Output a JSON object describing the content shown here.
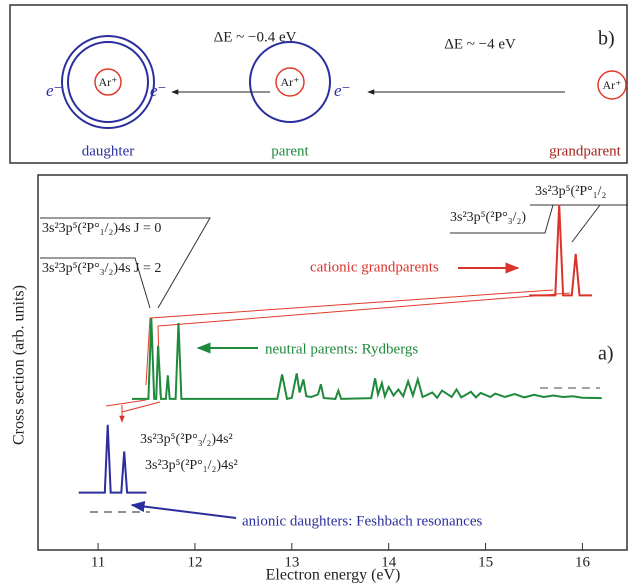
{
  "diagram": {
    "panel_label": "b)",
    "energies": [
      "ΔE ~ −0.4 eV",
      "ΔE ~ −4 eV"
    ],
    "states": [
      {
        "name": "daughter",
        "ion": "Ar⁺",
        "electrons": [
          "e⁻",
          "e⁻"
        ]
      },
      {
        "name": "parent",
        "ion": "Ar⁺",
        "electrons": [
          "e⁻"
        ]
      },
      {
        "name": "grandparent",
        "ion": "Ar⁺",
        "electrons": []
      }
    ]
  },
  "chart_data": {
    "type": "line",
    "panel_label": "a)",
    "xlabel": "Electron energy (eV)",
    "ylabel": "Cross section (arb. units)",
    "xlim": [
      10.38,
      16.46
    ],
    "xticks": [
      11,
      12,
      13,
      14,
      15,
      16
    ],
    "ylim": [
      0,
      100
    ],
    "annotations": [
      "3s²3p⁵(²P°₁/₂)4s  J = 0",
      "3s²3p⁵(²P°₃/₂)4s  J = 2",
      "3s²3p⁵(²P°₃/₂)",
      "3s²3p⁵(²P°₁/₂",
      "3s²3p⁵(²P°₃/₂)4s²",
      "3s²3p⁵(²P°₁/₂)4s²"
    ],
    "series": [
      {
        "name": "cationic grandparents",
        "color": "#d9342b",
        "x": [
          15.45,
          15.72,
          15.76,
          15.8,
          15.89,
          15.93,
          15.97,
          16.1
        ],
        "values": [
          67.9,
          67.9,
          92.1,
          67.9,
          67.9,
          79.0,
          67.9,
          67.9
        ]
      },
      {
        "name": "neutral parents: Rydbergs",
        "color": "#1f8a3c",
        "x": [
          11.35,
          11.52,
          11.55,
          11.58,
          11.6,
          11.62,
          11.65,
          11.7,
          11.72,
          11.74,
          11.8,
          11.83,
          11.86,
          12.85,
          12.9,
          12.95,
          13.0,
          13.05,
          13.08,
          13.12,
          13.15,
          13.2,
          13.27,
          13.3,
          13.33,
          13.45,
          13.48,
          13.51,
          13.82,
          13.86,
          13.89,
          13.93,
          13.96,
          14.0,
          14.05,
          14.1,
          14.15,
          14.2,
          14.25,
          14.3,
          14.35,
          14.45,
          14.5,
          14.55,
          14.65,
          14.7,
          14.75,
          14.85,
          14.9,
          14.95,
          15.05,
          15.1,
          15.2,
          15.3,
          15.4,
          15.5,
          15.6,
          15.7,
          15.8,
          15.9,
          16.0,
          16.2
        ],
        "values": [
          40.3,
          40.3,
          61.8,
          40.3,
          40.3,
          54.5,
          40.3,
          40.3,
          46.6,
          40.3,
          40.3,
          60.5,
          40.3,
          40.3,
          46.8,
          40.3,
          40.6,
          47.1,
          42.0,
          45.5,
          41.0,
          40.8,
          41.5,
          44.2,
          40.5,
          40.3,
          42.5,
          40.3,
          40.5,
          45.8,
          41.5,
          44.5,
          41.0,
          43.5,
          41.2,
          42.8,
          41.0,
          45.0,
          41.2,
          45.5,
          40.8,
          42.0,
          40.6,
          42.5,
          40.8,
          42.8,
          40.7,
          42.2,
          40.7,
          41.9,
          40.8,
          41.7,
          40.8,
          41.6,
          40.7,
          41.4,
          40.8,
          41.2,
          40.8,
          41.0,
          40.6,
          40.5
        ]
      },
      {
        "name": "anionic daughters: Feshbach resonances",
        "color": "#2b2f9e",
        "x": [
          10.8,
          11.07,
          11.1,
          11.13,
          11.24,
          11.27,
          11.3,
          11.5
        ],
        "values": [
          15.3,
          15.3,
          33.4,
          15.3,
          15.3,
          26.3,
          15.3,
          15.3
        ]
      }
    ]
  }
}
